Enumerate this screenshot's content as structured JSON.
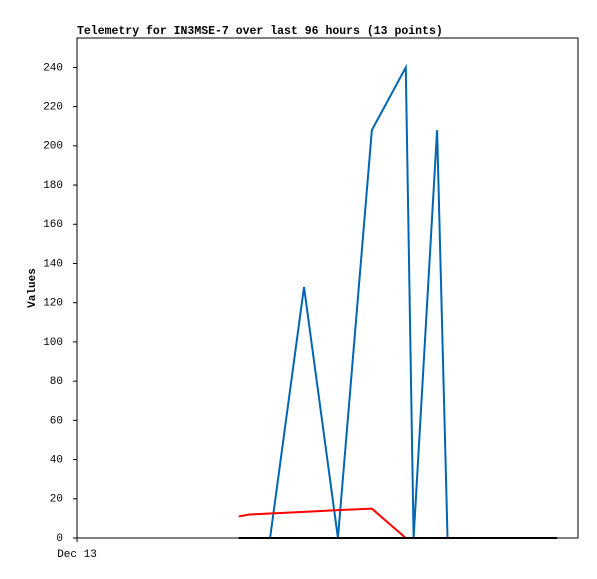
{
  "chart_data": {
    "type": "line",
    "title": "Telemetry for IN3MSE-7 over last 96 hours (13 points)",
    "y_label": "Values",
    "x": [
      31,
      33,
      37,
      43.5,
      50,
      56.5,
      63,
      64.5,
      69,
      71,
      77,
      85,
      92
    ],
    "series": [
      {
        "color": "#0066b3",
        "values": [
          0,
          0,
          0,
          128,
          0,
          208,
          240,
          0,
          208,
          0,
          0,
          0,
          0
        ]
      },
      {
        "color": "#ff0000",
        "values": [
          11,
          12,
          12.5,
          13.3,
          14.2,
          15,
          0,
          null,
          null,
          null,
          null,
          null,
          null
        ]
      },
      {
        "color": "#000000",
        "values": [
          0,
          0,
          0,
          0,
          0,
          0,
          0,
          0,
          0,
          0,
          0,
          0,
          0
        ]
      }
    ],
    "xlim": [
      0,
      96
    ],
    "xticks": [
      {
        "value": 0,
        "label": "Dec 13"
      }
    ],
    "ylim": [
      0,
      255
    ],
    "yticks": [
      0,
      20,
      40,
      60,
      80,
      100,
      120,
      140,
      160,
      180,
      200,
      220,
      240
    ]
  }
}
